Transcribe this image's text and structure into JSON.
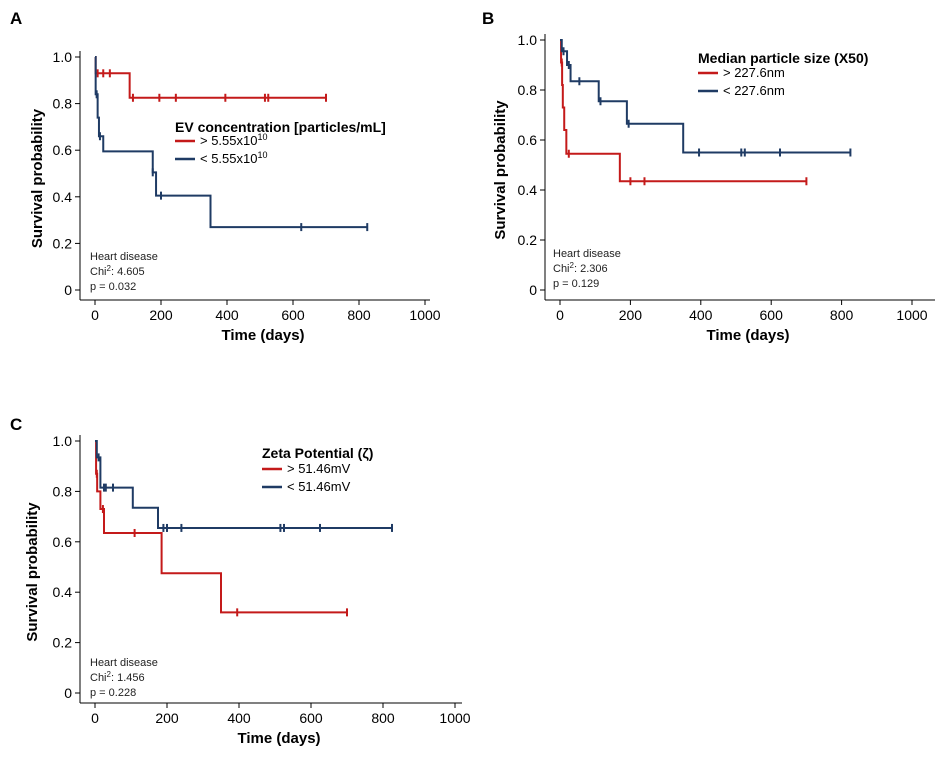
{
  "colors": {
    "red": "#c41a1a",
    "blue": "#1f3b64"
  },
  "chart_data": [
    {
      "type": "line",
      "subtype": "kaplan-meier",
      "panel": "A",
      "xlabel": "Time (days)",
      "ylabel": "Survival probability",
      "xlim": [
        0,
        1000
      ],
      "ylim": [
        0,
        1
      ],
      "xticks": [
        "0",
        "200",
        "400",
        "600",
        "800",
        "1000"
      ],
      "yticks": [
        "0",
        "0.2",
        "0.4",
        "0.6",
        "0.8",
        "1.0"
      ],
      "legend_title": "EV concentration [particles/mL]",
      "legend_position": "center-right",
      "annotation": {
        "line1": "Heart disease",
        "chi_label": "Chi",
        "chi_sup": "2",
        "chi_value": ": 4.605",
        "pval": "p = 0.032"
      },
      "series": [
        {
          "name_base": "> 5.55x10",
          "name_sup": "10",
          "color": "red",
          "steps": [
            [
              0,
              1.0
            ],
            [
              2,
              0.93
            ],
            [
              105,
              0.825
            ],
            [
              700,
              0.825
            ]
          ],
          "censor_x": [
            8,
            25,
            45,
            115,
            195,
            245,
            395,
            515,
            525,
            700
          ]
        },
        {
          "name_base": "< 5.55x10",
          "name_sup": "10",
          "color": "blue",
          "steps": [
            [
              0,
              1.0
            ],
            [
              2,
              0.84
            ],
            [
              8,
              0.74
            ],
            [
              12,
              0.66
            ],
            [
              25,
              0.595
            ],
            [
              175,
              0.505
            ],
            [
              185,
              0.405
            ],
            [
              350,
              0.27
            ],
            [
              825,
              0.27
            ]
          ],
          "censor_x": [
            5,
            15,
            175,
            200,
            625,
            825
          ]
        }
      ]
    },
    {
      "type": "line",
      "subtype": "kaplan-meier",
      "panel": "B",
      "xlabel": "Time (days)",
      "ylabel": "Survival probability",
      "xlim": [
        0,
        1000
      ],
      "ylim": [
        0,
        1
      ],
      "xticks": [
        "0",
        "200",
        "400",
        "600",
        "800",
        "1000"
      ],
      "yticks": [
        "0",
        "0.2",
        "0.4",
        "0.6",
        "0.8",
        "1.0"
      ],
      "legend_title": "Median particle size (X50)",
      "legend_position": "top-right",
      "annotation": {
        "line1": "Heart disease",
        "chi_label": "Chi",
        "chi_sup": "2",
        "chi_value": ": 2.306",
        "pval": "p = 0.129"
      },
      "series": [
        {
          "name_base": "> 227.6nm",
          "name_sup": "",
          "color": "red",
          "steps": [
            [
              0,
              1.0
            ],
            [
              3,
              0.91
            ],
            [
              6,
              0.82
            ],
            [
              8,
              0.73
            ],
            [
              12,
              0.64
            ],
            [
              18,
              0.545
            ],
            [
              170,
              0.435
            ],
            [
              700,
              0.435
            ]
          ],
          "censor_x": [
            5,
            25,
            200,
            240,
            700
          ]
        },
        {
          "name_base": "< 227.6nm",
          "name_sup": "",
          "color": "blue",
          "steps": [
            [
              0,
              1.0
            ],
            [
              5,
              0.955
            ],
            [
              20,
              0.9
            ],
            [
              30,
              0.835
            ],
            [
              110,
              0.755
            ],
            [
              190,
              0.665
            ],
            [
              350,
              0.55
            ],
            [
              825,
              0.55
            ]
          ],
          "censor_x": [
            10,
            25,
            55,
            115,
            195,
            395,
            515,
            525,
            625,
            825
          ]
        }
      ]
    },
    {
      "type": "line",
      "subtype": "kaplan-meier",
      "panel": "C",
      "xlabel": "Time (days)",
      "ylabel": "Survival probability",
      "xlim": [
        0,
        1000
      ],
      "ylim": [
        0,
        1
      ],
      "xticks": [
        "0",
        "200",
        "400",
        "600",
        "800",
        "1000"
      ],
      "yticks": [
        "0",
        "0.2",
        "0.4",
        "0.6",
        "0.8",
        "1.0"
      ],
      "legend_title": "Zeta Potential (ζ)",
      "legend_position": "top-center",
      "annotation": {
        "line1": "Heart disease",
        "chi_label": "Chi",
        "chi_sup": "2",
        "chi_value": ": 1.456",
        "pval": "p = 0.228"
      },
      "series": [
        {
          "name_base": "> 51.46mV",
          "name_sup": "",
          "color": "red",
          "steps": [
            [
              0,
              1.0
            ],
            [
              3,
              0.87
            ],
            [
              6,
              0.8
            ],
            [
              15,
              0.73
            ],
            [
              25,
              0.635
            ],
            [
              185,
              0.475
            ],
            [
              350,
              0.32
            ],
            [
              700,
              0.32
            ]
          ],
          "censor_x": [
            5,
            22,
            110,
            395,
            700
          ]
        },
        {
          "name_base": "< 51.46mV",
          "name_sup": "",
          "color": "blue",
          "steps": [
            [
              0,
              1.0
            ],
            [
              5,
              0.935
            ],
            [
              15,
              0.815
            ],
            [
              105,
              0.735
            ],
            [
              175,
              0.655
            ],
            [
              825,
              0.655
            ]
          ],
          "censor_x": [
            10,
            25,
            30,
            50,
            190,
            200,
            240,
            515,
            525,
            625,
            825
          ]
        }
      ]
    }
  ]
}
